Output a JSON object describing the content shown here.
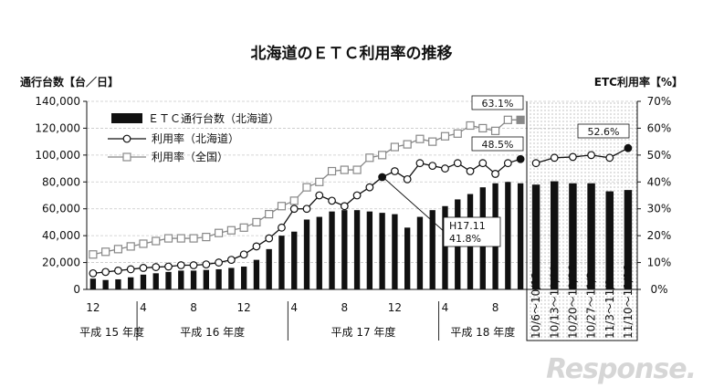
{
  "chart_data": {
    "type": "bar+line",
    "title": "北海道のＥＴＣ利用率の推移",
    "y_left_label": "通行台数【台／日】",
    "y_right_label": "ETC利用率【%】",
    "y_left_ticks": [
      "0",
      "20,000",
      "40,000",
      "60,000",
      "80,000",
      "100,000",
      "120,000",
      "140,000"
    ],
    "y_right_ticks": [
      "0%",
      "10%",
      "20%",
      "30%",
      "40%",
      "50%",
      "60%",
      "70%"
    ],
    "ylim_left": [
      0,
      140000
    ],
    "ylim_right": [
      0,
      70
    ],
    "legend": {
      "bars": "ＥＴＣ通行台数（北海道）",
      "hokkaido": "利用率（北海道）",
      "national": "利用率（全国）"
    },
    "month_ticks": [
      {
        "i": 0,
        "label": "12"
      },
      {
        "i": 4,
        "label": "4"
      },
      {
        "i": 8,
        "label": "8"
      },
      {
        "i": 12,
        "label": "12"
      },
      {
        "i": 16,
        "label": "4"
      },
      {
        "i": 20,
        "label": "8"
      },
      {
        "i": 24,
        "label": "12"
      },
      {
        "i": 28,
        "label": "4"
      },
      {
        "i": 32,
        "label": "8"
      }
    ],
    "fiscal_years": [
      {
        "from": 0,
        "to": 3,
        "label": "平成 15 年度"
      },
      {
        "from": 4,
        "to": 15,
        "label": "平成 16 年度"
      },
      {
        "from": 16,
        "to": 27,
        "label": "平成 17 年度"
      },
      {
        "from": 28,
        "to": 34,
        "label": "平成 18 年度"
      }
    ],
    "monthly": {
      "etc_traffic": [
        8000,
        7000,
        7500,
        9000,
        11000,
        12000,
        13000,
        14000,
        14000,
        14500,
        15000,
        16000,
        17000,
        22000,
        30000,
        40000,
        43000,
        52000,
        54000,
        58000,
        59000,
        59000,
        58000,
        57000,
        56000,
        46000,
        54000,
        59000,
        62000,
        67000,
        71000,
        76000,
        79000,
        80000,
        79000
      ],
      "hokkaido_rate": [
        6,
        6.5,
        7,
        7.5,
        8,
        8.3,
        8.5,
        9,
        9,
        9.3,
        10,
        11,
        13,
        16,
        19,
        23,
        30,
        30,
        35,
        33,
        31,
        35,
        38,
        41.8,
        44,
        41,
        47,
        46,
        45,
        47,
        44,
        47,
        43,
        47,
        48.5
      ],
      "national_rate": [
        13,
        14,
        15,
        16,
        17,
        18,
        19,
        19,
        19,
        19.5,
        21,
        22,
        23,
        25,
        28,
        31,
        33,
        38,
        40,
        44,
        44.5,
        44.5,
        49,
        50,
        53,
        54,
        56,
        55,
        57,
        58,
        61,
        60,
        59,
        63.1,
        63.1
      ]
    },
    "weekly": {
      "labels": [
        "10/6～10/12",
        "10/13～10/19",
        "10/20～10/26",
        "10/27～11/2",
        "11/3～11/9",
        "11/10～11/16"
      ],
      "etc_traffic": [
        78000,
        80500,
        79000,
        79000,
        73000,
        74000
      ],
      "hokkaido_rate": [
        47,
        49,
        49.3,
        50,
        49,
        52.6
      ]
    },
    "callouts": {
      "national_last": "63.1%",
      "hokkaido_last": "48.5%",
      "weekly_last": "52.6%",
      "h17_11_line1": "H17.11",
      "h17_11_line2": "41.8%"
    }
  },
  "watermark": "Response."
}
